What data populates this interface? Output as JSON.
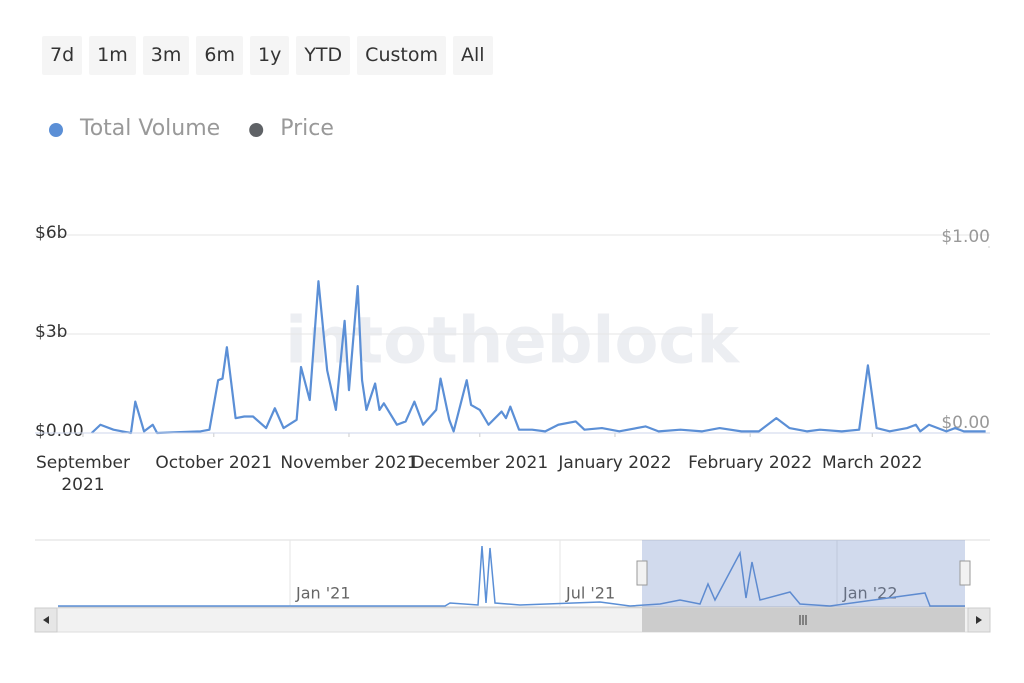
{
  "chart_data": {
    "type": "line",
    "range_selector": [
      "7d",
      "1m",
      "3m",
      "6m",
      "1y",
      "YTD",
      "Custom",
      "All"
    ],
    "watermark": "intotheblock",
    "x": [
      2,
      4,
      7,
      11,
      12,
      14,
      16,
      17,
      27,
      29,
      31,
      32,
      33,
      35,
      37,
      39,
      42,
      44,
      46,
      49,
      50,
      52,
      54,
      56,
      58,
      60,
      61,
      63,
      64,
      65,
      67,
      68,
      69,
      72,
      74,
      76,
      78,
      81,
      82,
      84,
      85,
      88,
      89,
      91,
      93,
      96,
      97,
      98,
      100,
      103,
      106,
      109,
      113,
      115,
      119,
      123,
      129,
      132,
      137,
      142,
      146,
      151,
      155,
      159,
      162,
      166,
      169,
      174,
      178,
      180,
      182,
      185,
      189,
      191,
      192,
      194,
      198,
      200,
      202,
      205,
      207
    ],
    "series": [
      {
        "name": "Total Volume",
        "color": "#5b8fd6",
        "values": [
          0,
          0.25,
          0.1,
          0,
          0.95,
          0.05,
          0.25,
          0,
          0.05,
          0.1,
          1.6,
          1.65,
          2.6,
          0.45,
          0.5,
          0.5,
          0.15,
          0.75,
          0.15,
          0.4,
          2.0,
          1.0,
          4.6,
          1.9,
          0.7,
          3.4,
          1.3,
          4.45,
          1.6,
          0.7,
          1.5,
          0.7,
          0.9,
          0.25,
          0.35,
          0.95,
          0.25,
          0.7,
          1.65,
          0.4,
          0.05,
          1.6,
          0.85,
          0.7,
          0.25,
          0.65,
          0.45,
          0.8,
          0.1,
          0.1,
          0.05,
          0.25,
          0.35,
          0.1,
          0.15,
          0.05,
          0.2,
          0.05,
          0.1,
          0.05,
          0.15,
          0.05,
          0.05,
          0.45,
          0.15,
          0.05,
          0.1,
          0.05,
          0.1,
          2.05,
          0.15,
          0.05,
          0.15,
          0.25,
          0.05,
          0.25,
          0.05,
          0.15,
          0.05,
          0.05,
          0.05
        ]
      },
      {
        "name": "Price",
        "color": "#5f6266",
        "axis": "y2"
      }
    ],
    "xlim": [
      -11,
      208
    ],
    "xticks": [
      {
        "value": 0,
        "label": "September 2021"
      },
      {
        "value": 30,
        "label": "October 2021"
      },
      {
        "value": 61,
        "label": "November 2021"
      },
      {
        "value": 91,
        "label": "December 2021"
      },
      {
        "value": 122,
        "label": "January 2022"
      },
      {
        "value": 153,
        "label": "February 2022"
      },
      {
        "value": 181,
        "label": "March 2022"
      }
    ],
    "ylim": [
      0,
      6
    ],
    "yticks": [
      {
        "value": 0,
        "label": "$0.00"
      },
      {
        "value": 3,
        "label": "$3b"
      },
      {
        "value": 6,
        "label": "$6b"
      }
    ],
    "y2lim": [
      0,
      1
    ],
    "y2ticks": [
      {
        "value": 0,
        "label": "$0.00"
      },
      {
        "value": 1,
        "label": "$1.00"
      }
    ],
    "grid": true,
    "navigator_labels": [
      "Jan '21",
      "Jul '21",
      "Jan '22"
    ]
  }
}
